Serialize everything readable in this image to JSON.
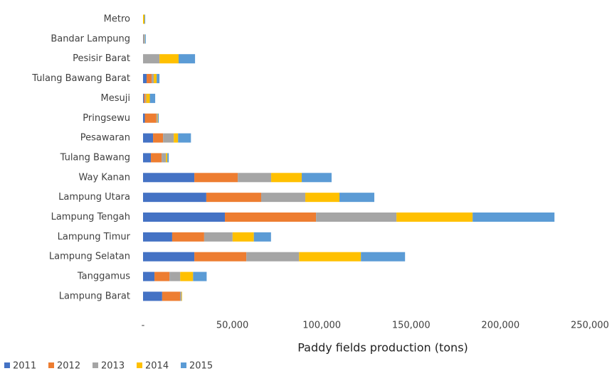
{
  "chart_data": {
    "type": "stacked_barh",
    "xlabel": "Paddy fields production (tons)",
    "categories": [
      "Metro",
      "Bandar Lampung",
      "Pesisir Barat",
      "Tulang Bawang Barat",
      "Mesuji",
      "Pringsewu",
      "Pesawaran",
      "Tulang Bawang",
      "Way Kanan",
      "Lampung Utara",
      "Lampung Tengah",
      "Lampung Timur",
      "Lampung Selatan",
      "Tanggamus",
      "Lampung Barat"
    ],
    "series": [
      {
        "name": "2011",
        "color": "#4472c4",
        "values": [
          0,
          300,
          0,
          2000,
          500,
          1000,
          5600,
          4400,
          28700,
          35400,
          45800,
          16300,
          28700,
          6400,
          10700
        ]
      },
      {
        "name": "2012",
        "color": "#ed7d31",
        "values": [
          0,
          200,
          0,
          2800,
          800,
          6500,
          5600,
          6000,
          24300,
          30700,
          51000,
          17900,
          29100,
          8400,
          10000
        ]
      },
      {
        "name": "2013",
        "color": "#a5a5a5",
        "values": [
          0,
          200,
          9200,
          1200,
          500,
          500,
          6000,
          2400,
          18700,
          24700,
          45000,
          15900,
          29500,
          6000,
          800
        ]
      },
      {
        "name": "2014",
        "color": "#ffc000",
        "values": [
          800,
          200,
          10700,
          1600,
          2000,
          300,
          2400,
          800,
          17100,
          19100,
          42600,
          11900,
          34600,
          7200,
          300
        ]
      },
      {
        "name": "2015",
        "color": "#5b9bd5",
        "values": [
          400,
          600,
          9200,
          1600,
          3000,
          500,
          7200,
          800,
          16700,
          19500,
          45800,
          9600,
          24700,
          7600,
          0
        ]
      }
    ],
    "xlim": [
      0,
      260000
    ],
    "xticks": [
      {
        "value": 0,
        "label": "-"
      },
      {
        "value": 50000,
        "label": "50,000"
      },
      {
        "value": 100000,
        "label": "100,000"
      },
      {
        "value": 150000,
        "label": "150,000"
      },
      {
        "value": 200000,
        "label": "200,000"
      },
      {
        "value": 250000,
        "label": "250,000"
      }
    ],
    "legend": "bottom-left"
  }
}
